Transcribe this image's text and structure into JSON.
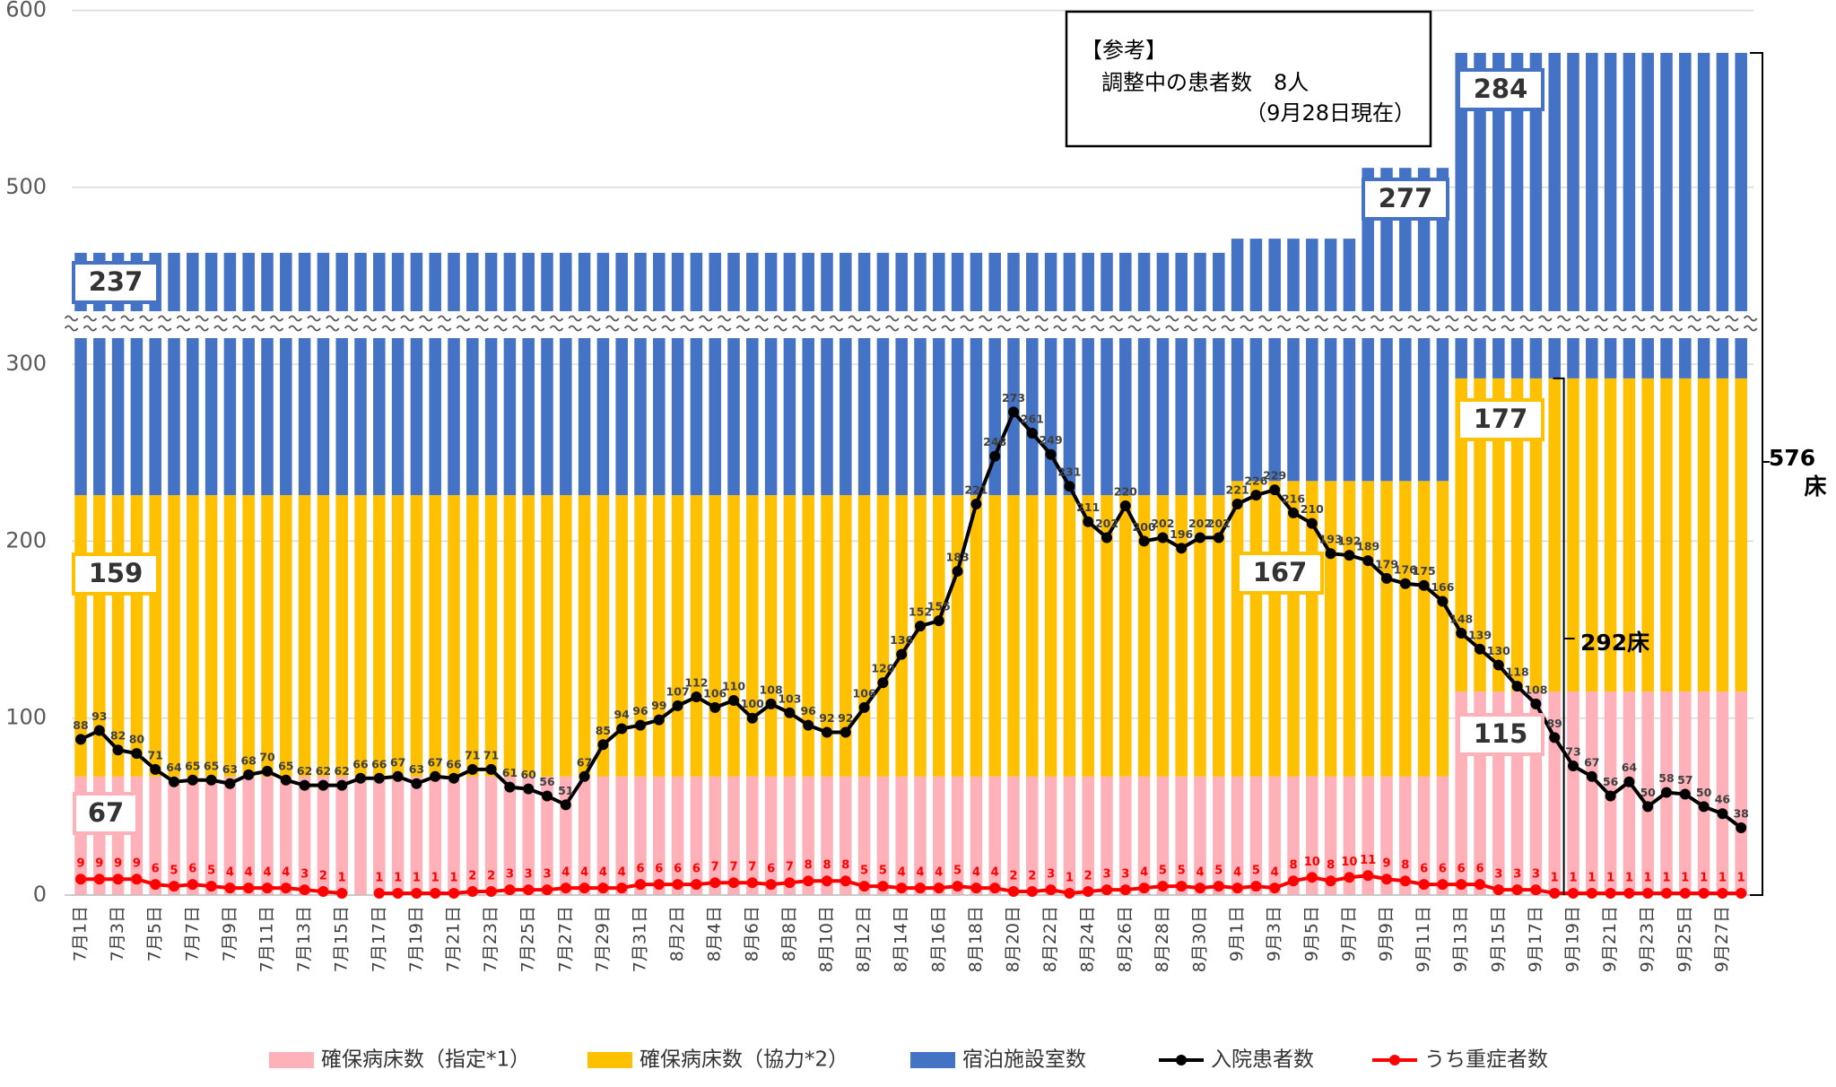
{
  "chart_data": {
    "type": "bar",
    "stacked": true,
    "categories": [
      "7月1日",
      null,
      "7月3日",
      null,
      "7月5日",
      null,
      "7月7日",
      null,
      "7月9日",
      null,
      "7月11日",
      null,
      "7月13日",
      null,
      "7月15日",
      null,
      "7月17日",
      null,
      "7月19日",
      null,
      "7月21日",
      null,
      "7月23日",
      null,
      "7月25日",
      null,
      "7月27日",
      null,
      "7月29日",
      null,
      "7月31日",
      null,
      "8月2日",
      null,
      "8月4日",
      null,
      "8月6日",
      null,
      "8月8日",
      null,
      "8月10日",
      null,
      "8月12日",
      null,
      "8月14日",
      null,
      "8月16日",
      null,
      "8月18日",
      null,
      "8月20日",
      null,
      "8月22日",
      null,
      "8月24日",
      null,
      "8月26日",
      null,
      "8月28日",
      null,
      "8月30日",
      null,
      "9月1日",
      null,
      "9月3日",
      null,
      "9月5日",
      null,
      "9月7日",
      null,
      "9月9日",
      null,
      "9月11日",
      null,
      "9月13日",
      null,
      "9月15日",
      null,
      "9月17日",
      null,
      "9月19日",
      null,
      "9月21日",
      null,
      "9月23日",
      null,
      "9月25日",
      null,
      "9月27日",
      null
    ],
    "series": [
      {
        "name": "確保病床数（指定*1）",
        "color": "#ffb1b9",
        "values": [
          67,
          67,
          67,
          67,
          67,
          67,
          67,
          67,
          67,
          67,
          67,
          67,
          67,
          67,
          67,
          67,
          67,
          67,
          67,
          67,
          67,
          67,
          67,
          67,
          67,
          67,
          67,
          67,
          67,
          67,
          67,
          67,
          67,
          67,
          67,
          67,
          67,
          67,
          67,
          67,
          67,
          67,
          67,
          67,
          67,
          67,
          67,
          67,
          67,
          67,
          67,
          67,
          67,
          67,
          67,
          67,
          67,
          67,
          67,
          67,
          67,
          67,
          67,
          67,
          67,
          67,
          67,
          67,
          67,
          67,
          67,
          67,
          67,
          67,
          115,
          115,
          115,
          115,
          115,
          115,
          115,
          115,
          115,
          115,
          115,
          115,
          115,
          115,
          115,
          115
        ]
      },
      {
        "name": "確保病床数（協力*2）",
        "color": "#ffc000",
        "values": [
          159,
          159,
          159,
          159,
          159,
          159,
          159,
          159,
          159,
          159,
          159,
          159,
          159,
          159,
          159,
          159,
          159,
          159,
          159,
          159,
          159,
          159,
          159,
          159,
          159,
          159,
          159,
          159,
          159,
          159,
          159,
          159,
          159,
          159,
          159,
          159,
          159,
          159,
          159,
          159,
          159,
          159,
          159,
          159,
          159,
          159,
          159,
          159,
          159,
          159,
          159,
          159,
          159,
          159,
          159,
          159,
          159,
          159,
          159,
          159,
          159,
          159,
          167,
          167,
          167,
          167,
          167,
          167,
          167,
          167,
          167,
          167,
          167,
          167,
          177,
          177,
          177,
          177,
          177,
          177,
          177,
          177,
          177,
          177,
          177,
          177,
          177,
          177,
          177,
          177
        ]
      },
      {
        "name": "宿泊施設室数",
        "color": "#4472c4",
        "values": [
          237,
          237,
          237,
          237,
          237,
          237,
          237,
          237,
          237,
          237,
          237,
          237,
          237,
          237,
          237,
          237,
          237,
          237,
          237,
          237,
          237,
          237,
          237,
          237,
          237,
          237,
          237,
          237,
          237,
          237,
          237,
          237,
          237,
          237,
          237,
          237,
          237,
          237,
          237,
          237,
          237,
          237,
          237,
          237,
          237,
          237,
          237,
          237,
          237,
          237,
          237,
          237,
          237,
          237,
          237,
          237,
          237,
          237,
          237,
          237,
          237,
          237,
          237,
          237,
          237,
          237,
          237,
          237,
          237,
          277,
          277,
          277,
          277,
          277,
          284,
          284,
          284,
          284,
          284,
          284,
          284,
          284,
          284,
          284,
          284,
          284,
          284,
          284,
          284,
          284
        ]
      },
      {
        "name": "入院患者数",
        "type": "line",
        "color": "#000000",
        "values": [
          88,
          93,
          82,
          80,
          71,
          64,
          65,
          65,
          63,
          68,
          70,
          65,
          62,
          62,
          62,
          66,
          66,
          67,
          63,
          67,
          66,
          71,
          71,
          61,
          60,
          56,
          51,
          67,
          85,
          94,
          96,
          99,
          107,
          112,
          106,
          110,
          100,
          108,
          103,
          96,
          92,
          92,
          106,
          120,
          136,
          152,
          155,
          183,
          221,
          248,
          273,
          261,
          249,
          231,
          211,
          202,
          220,
          200,
          202,
          196,
          202,
          202,
          221,
          226,
          229,
          216,
          210,
          193,
          192,
          189,
          179,
          176,
          175,
          166,
          148,
          139,
          130,
          118,
          108,
          89,
          73,
          67,
          56,
          64,
          50,
          58,
          57,
          50,
          46,
          38
        ]
      },
      {
        "name": "うち重症者数",
        "type": "line",
        "color": "#ff0000",
        "values": [
          9,
          9,
          9,
          9,
          6,
          5,
          6,
          5,
          4,
          4,
          4,
          4,
          3,
          2,
          1,
          null,
          1,
          1,
          1,
          1,
          1,
          2,
          2,
          3,
          3,
          3,
          4,
          4,
          4,
          4,
          6,
          6,
          6,
          6,
          7,
          7,
          7,
          6,
          7,
          8,
          8,
          8,
          5,
          5,
          4,
          4,
          4,
          5,
          4,
          4,
          2,
          2,
          3,
          1,
          2,
          3,
          3,
          4,
          5,
          5,
          4,
          5,
          4,
          5,
          4,
          8,
          10,
          8,
          10,
          11,
          9,
          8,
          6,
          6,
          6,
          6,
          3,
          3,
          3,
          1,
          1,
          1,
          1,
          1,
          1,
          1,
          1,
          1,
          1,
          1
        ]
      }
    ],
    "ylim": [
      0,
      600
    ],
    "axis_break": [
      315,
      430
    ],
    "yticks": [
      0,
      100,
      200,
      300,
      500,
      600
    ],
    "grid": true,
    "legend": "bottom",
    "annotations": {
      "note_title": "【参考】",
      "note_line1": "調整中の患者数　8人",
      "note_line2": "（9月28日現在）",
      "total": "576",
      "total_unit": "床",
      "hospital_total": "292床"
    }
  }
}
